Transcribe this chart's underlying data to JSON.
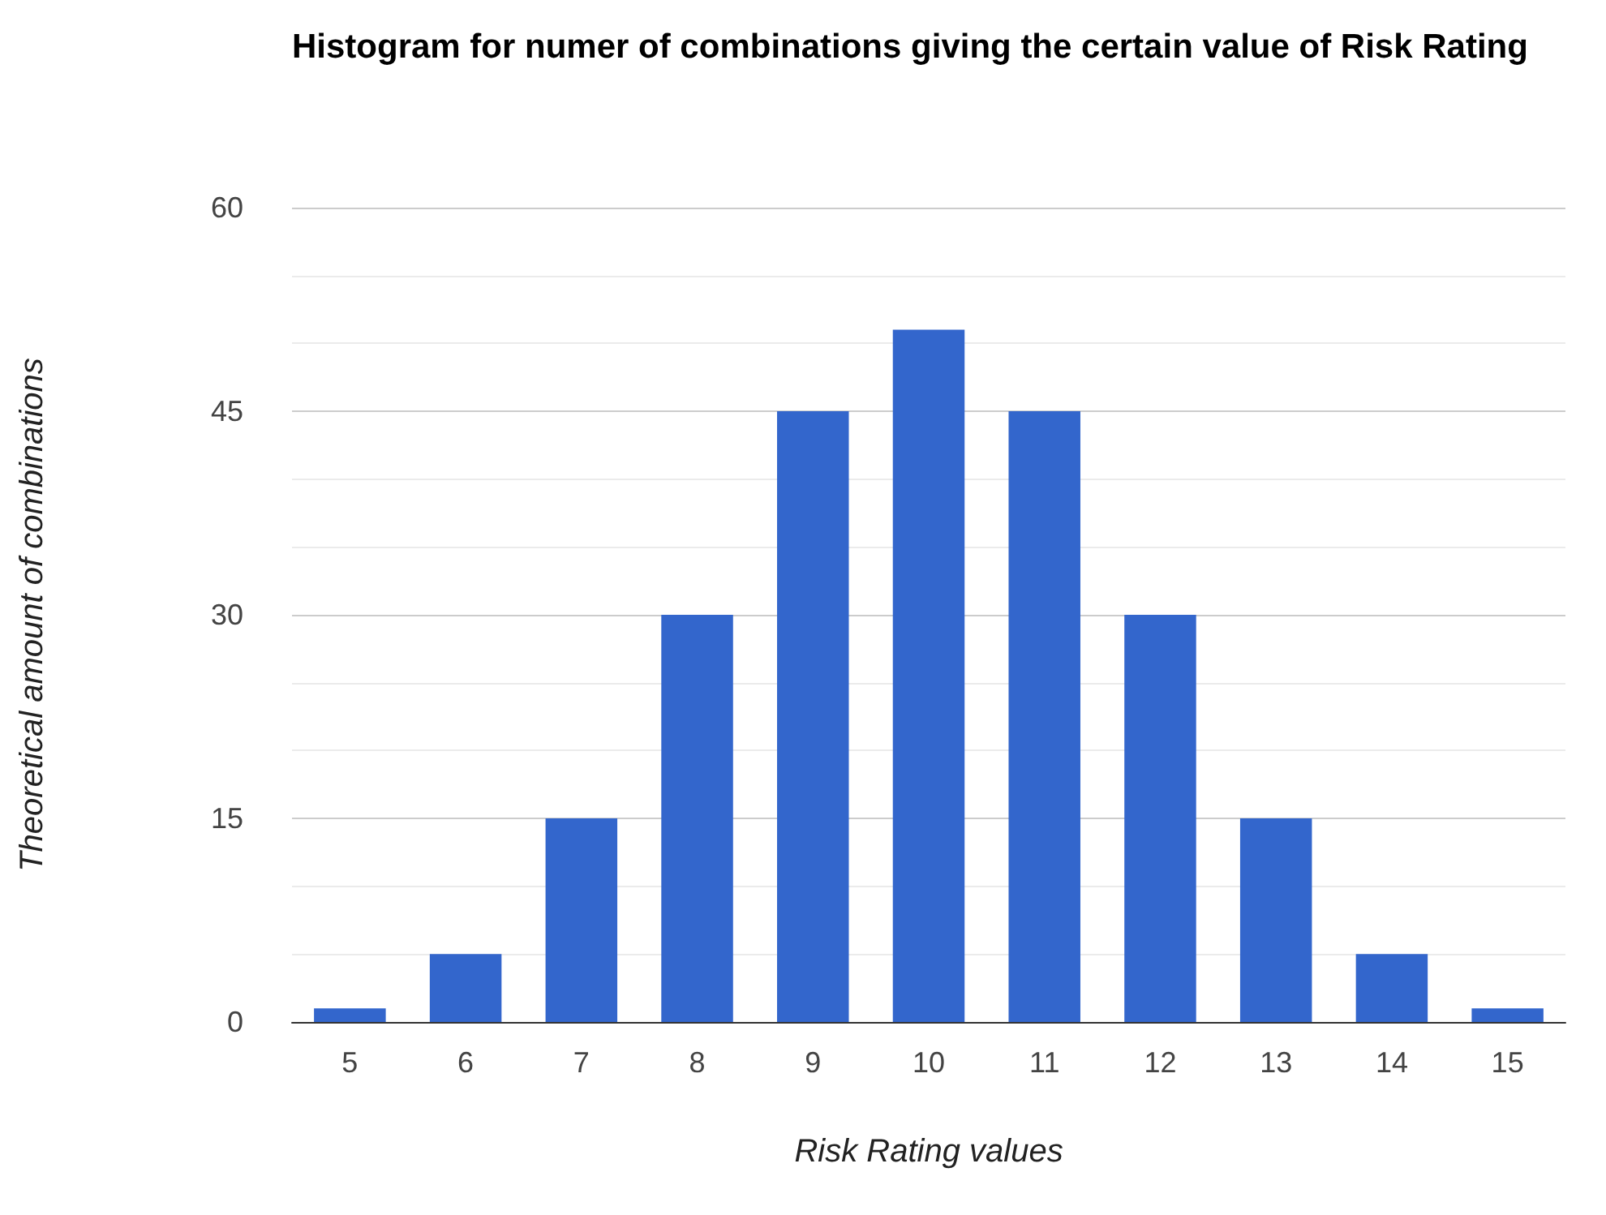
{
  "chart_data": {
    "type": "bar",
    "title": "Histogram for numer of combinations giving the certain value of Risk Rating",
    "xlabel": "Risk Rating values",
    "ylabel": "Theoretical amount of combinations",
    "categories": [
      "5",
      "6",
      "7",
      "8",
      "9",
      "10",
      "11",
      "12",
      "13",
      "14",
      "15"
    ],
    "values": [
      1,
      5,
      15,
      30,
      45,
      51,
      45,
      30,
      15,
      5,
      1
    ],
    "color": "#3366cc",
    "ylim": [
      0,
      60
    ],
    "yticks": [
      0,
      {
        "value": 5,
        "label": null
      },
      {
        "value": 10,
        "label": null
      },
      15,
      {
        "value": 20,
        "label": null
      },
      {
        "value": 25,
        "label": null
      },
      30,
      {
        "value": 35,
        "label": null
      },
      {
        "value": 40,
        "label": null
      },
      45,
      {
        "value": 50,
        "label": null
      },
      {
        "value": 55,
        "label": null
      },
      60
    ],
    "grid": true
  }
}
